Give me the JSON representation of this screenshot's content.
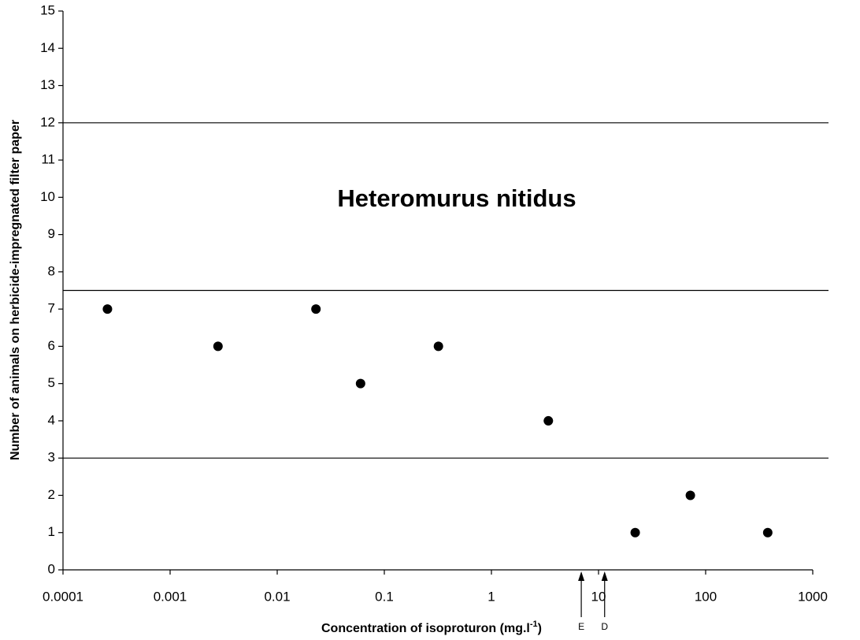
{
  "chart_data": {
    "type": "scatter",
    "title": "Heteromurus nitidus",
    "xlabel": "Concentration of isoproturon (mg.l",
    "xlabel_sup": "-1",
    "xlabel_end": ")",
    "ylabel": "Number of animals on herbicide-impregnated filter paper",
    "x": [
      0.00026,
      0.0028,
      0.023,
      0.06,
      0.32,
      3.4,
      22,
      72,
      380
    ],
    "values": [
      7,
      6,
      7,
      5,
      6,
      4,
      1,
      2,
      1
    ],
    "color": "#000000",
    "xscale": "log",
    "xlim": [
      0.0001,
      1000
    ],
    "xticks": [
      0.0001,
      0.001,
      0.01,
      0.1,
      1,
      10,
      100,
      1000
    ],
    "ylim": [
      0,
      15
    ],
    "yticks": [
      0,
      1,
      2,
      3,
      4,
      5,
      6,
      7,
      8,
      9,
      10,
      11,
      12,
      13,
      14,
      15
    ],
    "hlines": [
      12,
      7.5,
      3
    ],
    "markers": [
      {
        "label": "E",
        "x": 6.9
      },
      {
        "label": "D",
        "x": 11.4
      }
    ]
  }
}
